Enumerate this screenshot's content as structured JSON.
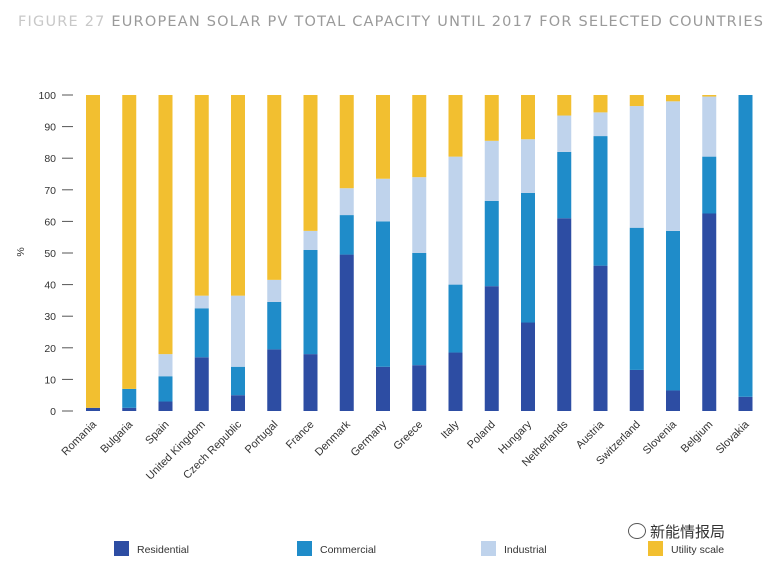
{
  "title": {
    "prefix": "FIGURE 27",
    "text": "EUROPEAN SOLAR PV TOTAL CAPACITY UNTIL 2017 FOR SELECTED COUNTRIES"
  },
  "watermark": {
    "text": "新能情报局",
    "icon": "wechat-bubble-icon"
  },
  "colors": {
    "residential": "#2d4da3",
    "commercial": "#1f8cc9",
    "industrial": "#bfd3ec",
    "utility": "#f2bf30"
  },
  "chart_data": {
    "type": "bar",
    "stacked": true,
    "title": "",
    "xlabel": "",
    "ylabel": "%",
    "ylim": [
      0,
      100
    ],
    "yticks": [
      0,
      10,
      20,
      30,
      40,
      50,
      60,
      70,
      80,
      90,
      100
    ],
    "grid": false,
    "legend_position": "bottom",
    "categories": [
      "Romania",
      "Bulgaria",
      "Spain",
      "United Kingdom",
      "Czech Republic",
      "Portugal",
      "France",
      "Denmark",
      "Germany",
      "Greece",
      "Italy",
      "Poland",
      "Hungary",
      "Netherlands",
      "Austria",
      "Switzerland",
      "Slovenia",
      "Belgium",
      "Slovakia"
    ],
    "series": [
      {
        "name": "Residential",
        "key": "residential",
        "values": [
          1,
          1,
          3,
          17,
          5,
          19.5,
          18,
          49.5,
          14,
          14.5,
          18.5,
          39.5,
          28,
          61,
          46,
          13,
          6.5,
          62.5,
          4.5
        ]
      },
      {
        "name": "Commercial",
        "key": "commercial",
        "values": [
          0,
          6,
          8,
          15.5,
          9,
          15,
          33,
          12.5,
          46,
          35.5,
          21.5,
          27,
          41,
          21,
          41,
          45,
          50.5,
          18,
          95.5
        ]
      },
      {
        "name": "Industrial",
        "key": "industrial",
        "values": [
          0,
          0,
          7,
          4,
          22.5,
          7,
          6,
          8.5,
          13.5,
          24,
          40.5,
          19,
          17,
          11.5,
          7.5,
          38.5,
          41,
          19,
          0
        ]
      },
      {
        "name": "Utility scale",
        "key": "utility",
        "values": [
          99,
          93,
          82,
          63.5,
          63.5,
          58.5,
          43,
          29.5,
          26.5,
          26,
          19.5,
          14.5,
          14,
          6.5,
          5.5,
          3.5,
          2,
          0.5,
          0
        ]
      }
    ]
  }
}
